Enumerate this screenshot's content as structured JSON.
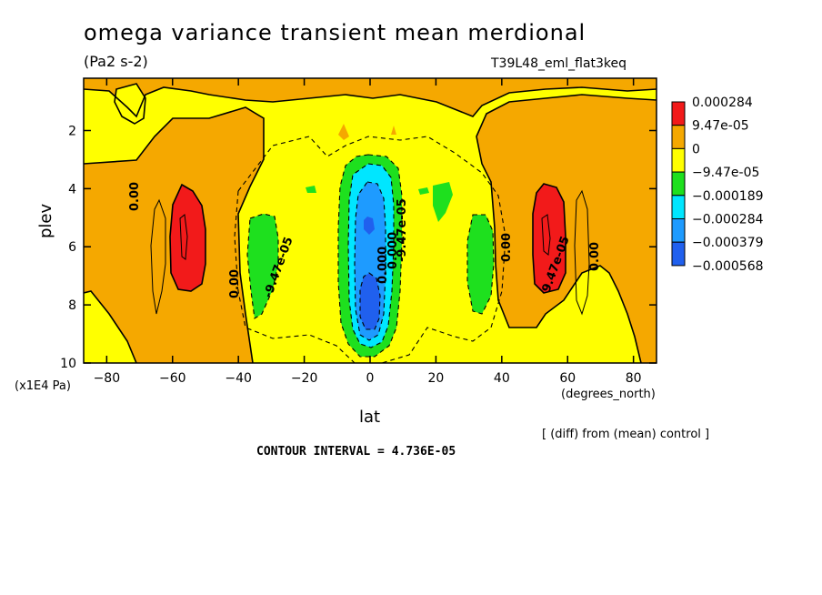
{
  "header": {
    "title": "omega variance transient mean merdional",
    "units": "(Pa2 s-2)",
    "run_id": "T39L48_eml_flat3keq"
  },
  "footer": {
    "diff_note": "[ (diff) from (mean) control ]",
    "contour_interval": "CONTOUR INTERVAL = 4.736E-05"
  },
  "colors": {
    "red": "#f21a1a",
    "orange": "#f5a800",
    "yellow": "#ffff00",
    "green": "#1ee01e",
    "cyan": "#00e6ff",
    "lightblue": "#1e9bff",
    "blue": "#2060ee"
  },
  "chart_data": {
    "type": "heatmap",
    "title": "omega variance transient mean merdional",
    "subtitle": "(Pa2 s-2)",
    "xlabel": "lat",
    "xunits": "(degrees_north)",
    "ylabel": "plev",
    "yunits": "(x1E4 Pa)",
    "xlim": [
      -87,
      87
    ],
    "ylim": [
      10,
      0.2
    ],
    "x_ticks": [
      -80,
      -60,
      -40,
      -20,
      0,
      20,
      40,
      60,
      80
    ],
    "y_ticks": [
      2,
      4,
      6,
      8,
      10
    ],
    "legend": {
      "position": "right",
      "levels": [
        "0.000284",
        "9.47e-05",
        "0",
        "-9.47e-05",
        "-0.000189",
        "-0.000284",
        "-0.000379",
        "-0.000568"
      ],
      "colors": [
        "#f21a1a",
        "#f5a800",
        "#ffff00",
        "#1ee01e",
        "#00e6ff",
        "#1e9bff",
        "#2060ee"
      ]
    },
    "contour_labels": [
      "0.00",
      "0.00",
      "-9.47e-05",
      "0.000",
      "-9.47e-05",
      "0.000",
      "0.00",
      "9.47e-05",
      "0.00"
    ],
    "features": [
      {
        "name": "SH red maximum",
        "lat": -57,
        "plev": 5.8,
        "value_band": "> 9.47e-05"
      },
      {
        "name": "NH red maximum",
        "lat": 57,
        "plev": 5.8,
        "value_band": "> 9.47e-05"
      },
      {
        "name": "equatorial minimum",
        "lat": 0,
        "plev": 7.5,
        "value_band": "< -0.000379"
      },
      {
        "name": "SH green minimum",
        "lat": -35,
        "plev": 6.5,
        "value_band": "-0.000189 to -9.47e-05"
      },
      {
        "name": "NH green minimum",
        "lat": 35,
        "plev": 6.5,
        "value_band": "-0.000189 to -9.47e-05"
      }
    ]
  }
}
